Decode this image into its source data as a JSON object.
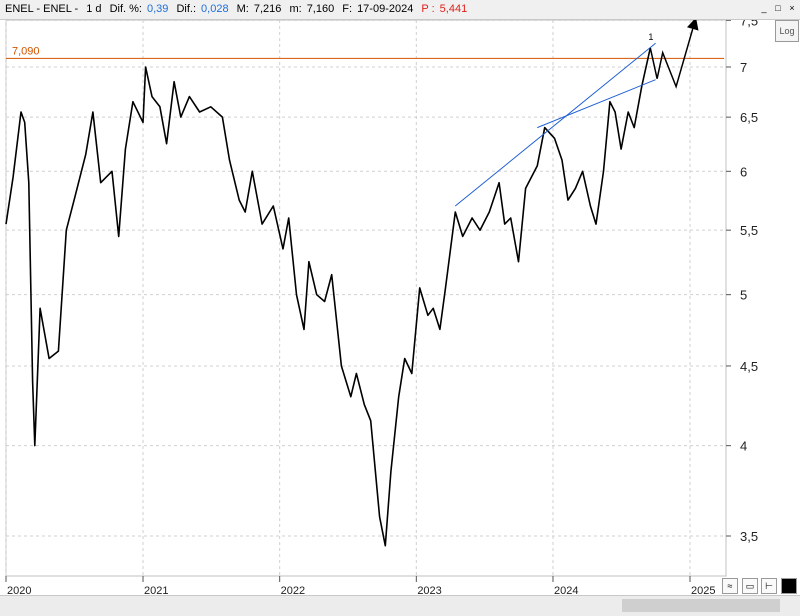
{
  "header": {
    "name": "ENEL - ENEL -",
    "period": "1 d",
    "dif_pct_label": "Dif. %:",
    "dif_pct": "0,39",
    "dif_label": "Dif.:",
    "dif": "0,028",
    "max_label": "M:",
    "max": "7,216",
    "min_label": "m:",
    "min": "7,160",
    "date_label": "F:",
    "date": "17-09-2024",
    "p_label": "P :",
    "p": "5,441"
  },
  "window_buttons": [
    "_",
    "□",
    "×"
  ],
  "log_button": "Log",
  "colors": {
    "price": "#000000",
    "trendline": "#1f5fd4",
    "level": "#d35400",
    "grid": "#d0d0d0"
  },
  "chart_data": {
    "type": "line",
    "series": [
      {
        "values": [
          [
            "2020-01-01",
            5.55
          ],
          [
            "2020-01-20",
            5.95
          ],
          [
            "2020-02-10",
            6.55
          ],
          [
            "2020-02-20",
            6.45
          ],
          [
            "2020-03-02",
            5.9
          ],
          [
            "2020-03-12",
            4.4
          ],
          [
            "2020-03-18",
            4.0
          ],
          [
            "2020-04-01",
            4.9
          ],
          [
            "2020-04-25",
            4.55
          ],
          [
            "2020-05-20",
            4.6
          ],
          [
            "2020-06-10",
            5.5
          ],
          [
            "2020-07-01",
            5.75
          ],
          [
            "2020-08-01",
            6.15
          ],
          [
            "2020-08-20",
            6.55
          ],
          [
            "2020-09-10",
            5.9
          ],
          [
            "2020-10-10",
            6.0
          ],
          [
            "2020-10-28",
            5.45
          ],
          [
            "2020-11-15",
            6.2
          ],
          [
            "2020-12-05",
            6.65
          ],
          [
            "2021-01-01",
            6.45
          ],
          [
            "2021-01-08",
            7.0
          ],
          [
            "2021-01-25",
            6.7
          ],
          [
            "2021-02-15",
            6.6
          ],
          [
            "2021-03-05",
            6.25
          ],
          [
            "2021-03-25",
            6.85
          ],
          [
            "2021-04-12",
            6.5
          ],
          [
            "2021-05-05",
            6.7
          ],
          [
            "2021-06-01",
            6.55
          ],
          [
            "2021-07-01",
            6.6
          ],
          [
            "2021-08-01",
            6.5
          ],
          [
            "2021-08-20",
            6.1
          ],
          [
            "2021-09-15",
            5.75
          ],
          [
            "2021-10-01",
            5.65
          ],
          [
            "2021-10-20",
            6.0
          ],
          [
            "2021-11-15",
            5.55
          ],
          [
            "2021-12-15",
            5.7
          ],
          [
            "2022-01-10",
            5.35
          ],
          [
            "2022-01-25",
            5.6
          ],
          [
            "2022-02-15",
            5.0
          ],
          [
            "2022-03-07",
            4.75
          ],
          [
            "2022-03-20",
            5.25
          ],
          [
            "2022-04-10",
            5.0
          ],
          [
            "2022-05-01",
            4.95
          ],
          [
            "2022-05-20",
            5.15
          ],
          [
            "2022-06-15",
            4.5
          ],
          [
            "2022-07-10",
            4.3
          ],
          [
            "2022-07-25",
            4.45
          ],
          [
            "2022-08-15",
            4.25
          ],
          [
            "2022-09-01",
            4.15
          ],
          [
            "2022-09-25",
            3.6
          ],
          [
            "2022-10-10",
            3.45
          ],
          [
            "2022-10-25",
            3.85
          ],
          [
            "2022-11-15",
            4.3
          ],
          [
            "2022-12-01",
            4.55
          ],
          [
            "2022-12-20",
            4.45
          ],
          [
            "2023-01-10",
            5.05
          ],
          [
            "2023-02-01",
            4.85
          ],
          [
            "2023-02-15",
            4.9
          ],
          [
            "2023-03-05",
            4.75
          ],
          [
            "2023-03-20",
            5.05
          ],
          [
            "2023-04-15",
            5.65
          ],
          [
            "2023-05-05",
            5.45
          ],
          [
            "2023-05-30",
            5.6
          ],
          [
            "2023-06-20",
            5.5
          ],
          [
            "2023-07-15",
            5.65
          ],
          [
            "2023-08-10",
            5.9
          ],
          [
            "2023-08-25",
            5.55
          ],
          [
            "2023-09-10",
            5.6
          ],
          [
            "2023-10-01",
            5.25
          ],
          [
            "2023-10-20",
            5.85
          ],
          [
            "2023-11-20",
            6.05
          ],
          [
            "2023-12-10",
            6.4
          ],
          [
            "2024-01-05",
            6.3
          ],
          [
            "2024-01-25",
            6.1
          ],
          [
            "2024-02-10",
            5.75
          ],
          [
            "2024-03-01",
            5.85
          ],
          [
            "2024-03-20",
            6.0
          ],
          [
            "2024-04-10",
            5.7
          ],
          [
            "2024-04-25",
            5.55
          ],
          [
            "2024-05-15",
            6.0
          ],
          [
            "2024-06-01",
            6.65
          ],
          [
            "2024-06-15",
            6.55
          ],
          [
            "2024-07-01",
            6.2
          ],
          [
            "2024-07-20",
            6.55
          ],
          [
            "2024-08-05",
            6.4
          ],
          [
            "2024-08-25",
            6.8
          ],
          [
            "2024-09-17",
            7.2
          ]
        ]
      }
    ],
    "projection": [
      [
        "2024-09-17",
        7.2
      ],
      [
        "2024-10-05",
        6.88
      ],
      [
        "2024-10-20",
        7.15
      ],
      [
        "2024-11-25",
        6.8
      ],
      [
        "2025-01-15",
        7.5
      ]
    ],
    "trendlines": [
      [
        [
          "2023-04-15",
          5.7
        ],
        [
          "2024-10-01",
          7.25
        ]
      ],
      [
        [
          "2023-11-20",
          6.4
        ],
        [
          "2024-10-01",
          6.87
        ]
      ]
    ],
    "hline": {
      "value": 7.09,
      "label": "7,090"
    },
    "wave_label": "1",
    "y_ticks": [
      "3,5",
      "4",
      "4,5",
      "5",
      "5,5",
      "6",
      "6,5",
      "7",
      "7,5"
    ],
    "x_ticks": [
      "2020",
      "2021",
      "2022",
      "2023",
      "2024",
      "2025"
    ],
    "ylim": [
      3.35,
      7.5
    ],
    "log_scale": true,
    "grid": true
  }
}
